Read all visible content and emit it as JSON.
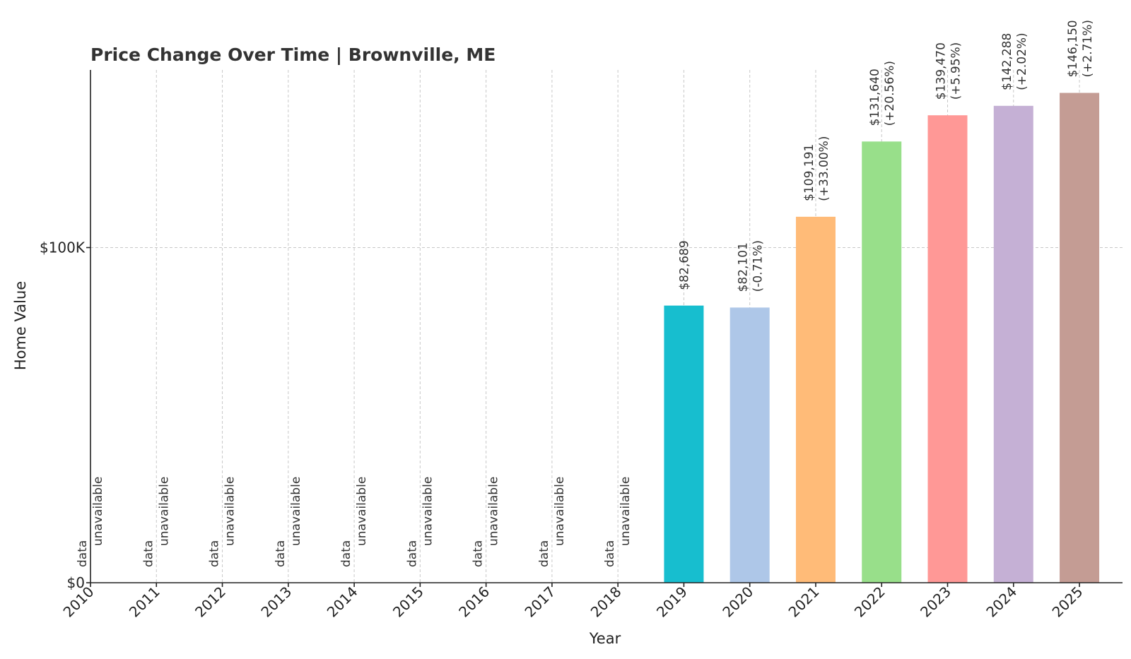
{
  "chart_data": {
    "type": "bar",
    "title": "Price Change Over Time | Brownville, ME",
    "xlabel": "Year",
    "ylabel": "Home Value",
    "categories": [
      "2010",
      "2011",
      "2012",
      "2013",
      "2014",
      "2015",
      "2016",
      "2017",
      "2018",
      "2019",
      "2020",
      "2021",
      "2022",
      "2023",
      "2024",
      "2025"
    ],
    "values": [
      null,
      null,
      null,
      null,
      null,
      null,
      null,
      null,
      null,
      82689,
      82101,
      109191,
      131640,
      139470,
      142288,
      146150
    ],
    "value_labels": [
      "",
      "",
      "",
      "",
      "",
      "",
      "",
      "",
      "",
      "$82,689",
      "$82,101",
      "$109,191",
      "$131,640",
      "$139,470",
      "$142,288",
      "$146,150"
    ],
    "change_labels": [
      "",
      "",
      "",
      "",
      "",
      "",
      "",
      "",
      "",
      "",
      "(-0.71%)",
      "(+33.00%)",
      "(+20.56%)",
      "(+5.95%)",
      "(+2.02%)",
      "(+2.71%)"
    ],
    "unavailable_label_line1": "data",
    "unavailable_label_line2": "unavailable",
    "colors": [
      "",
      "",
      "",
      "",
      "",
      "",
      "",
      "",
      "",
      "#17becf",
      "#aec7e8",
      "#ffbb78",
      "#98df8a",
      "#ff9896",
      "#c5b0d5",
      "#c49c94"
    ],
    "yticks": [
      0,
      100000
    ],
    "ytick_labels": [
      "$0",
      "$100K"
    ],
    "ylim": [
      0,
      153000
    ],
    "grid": true
  }
}
